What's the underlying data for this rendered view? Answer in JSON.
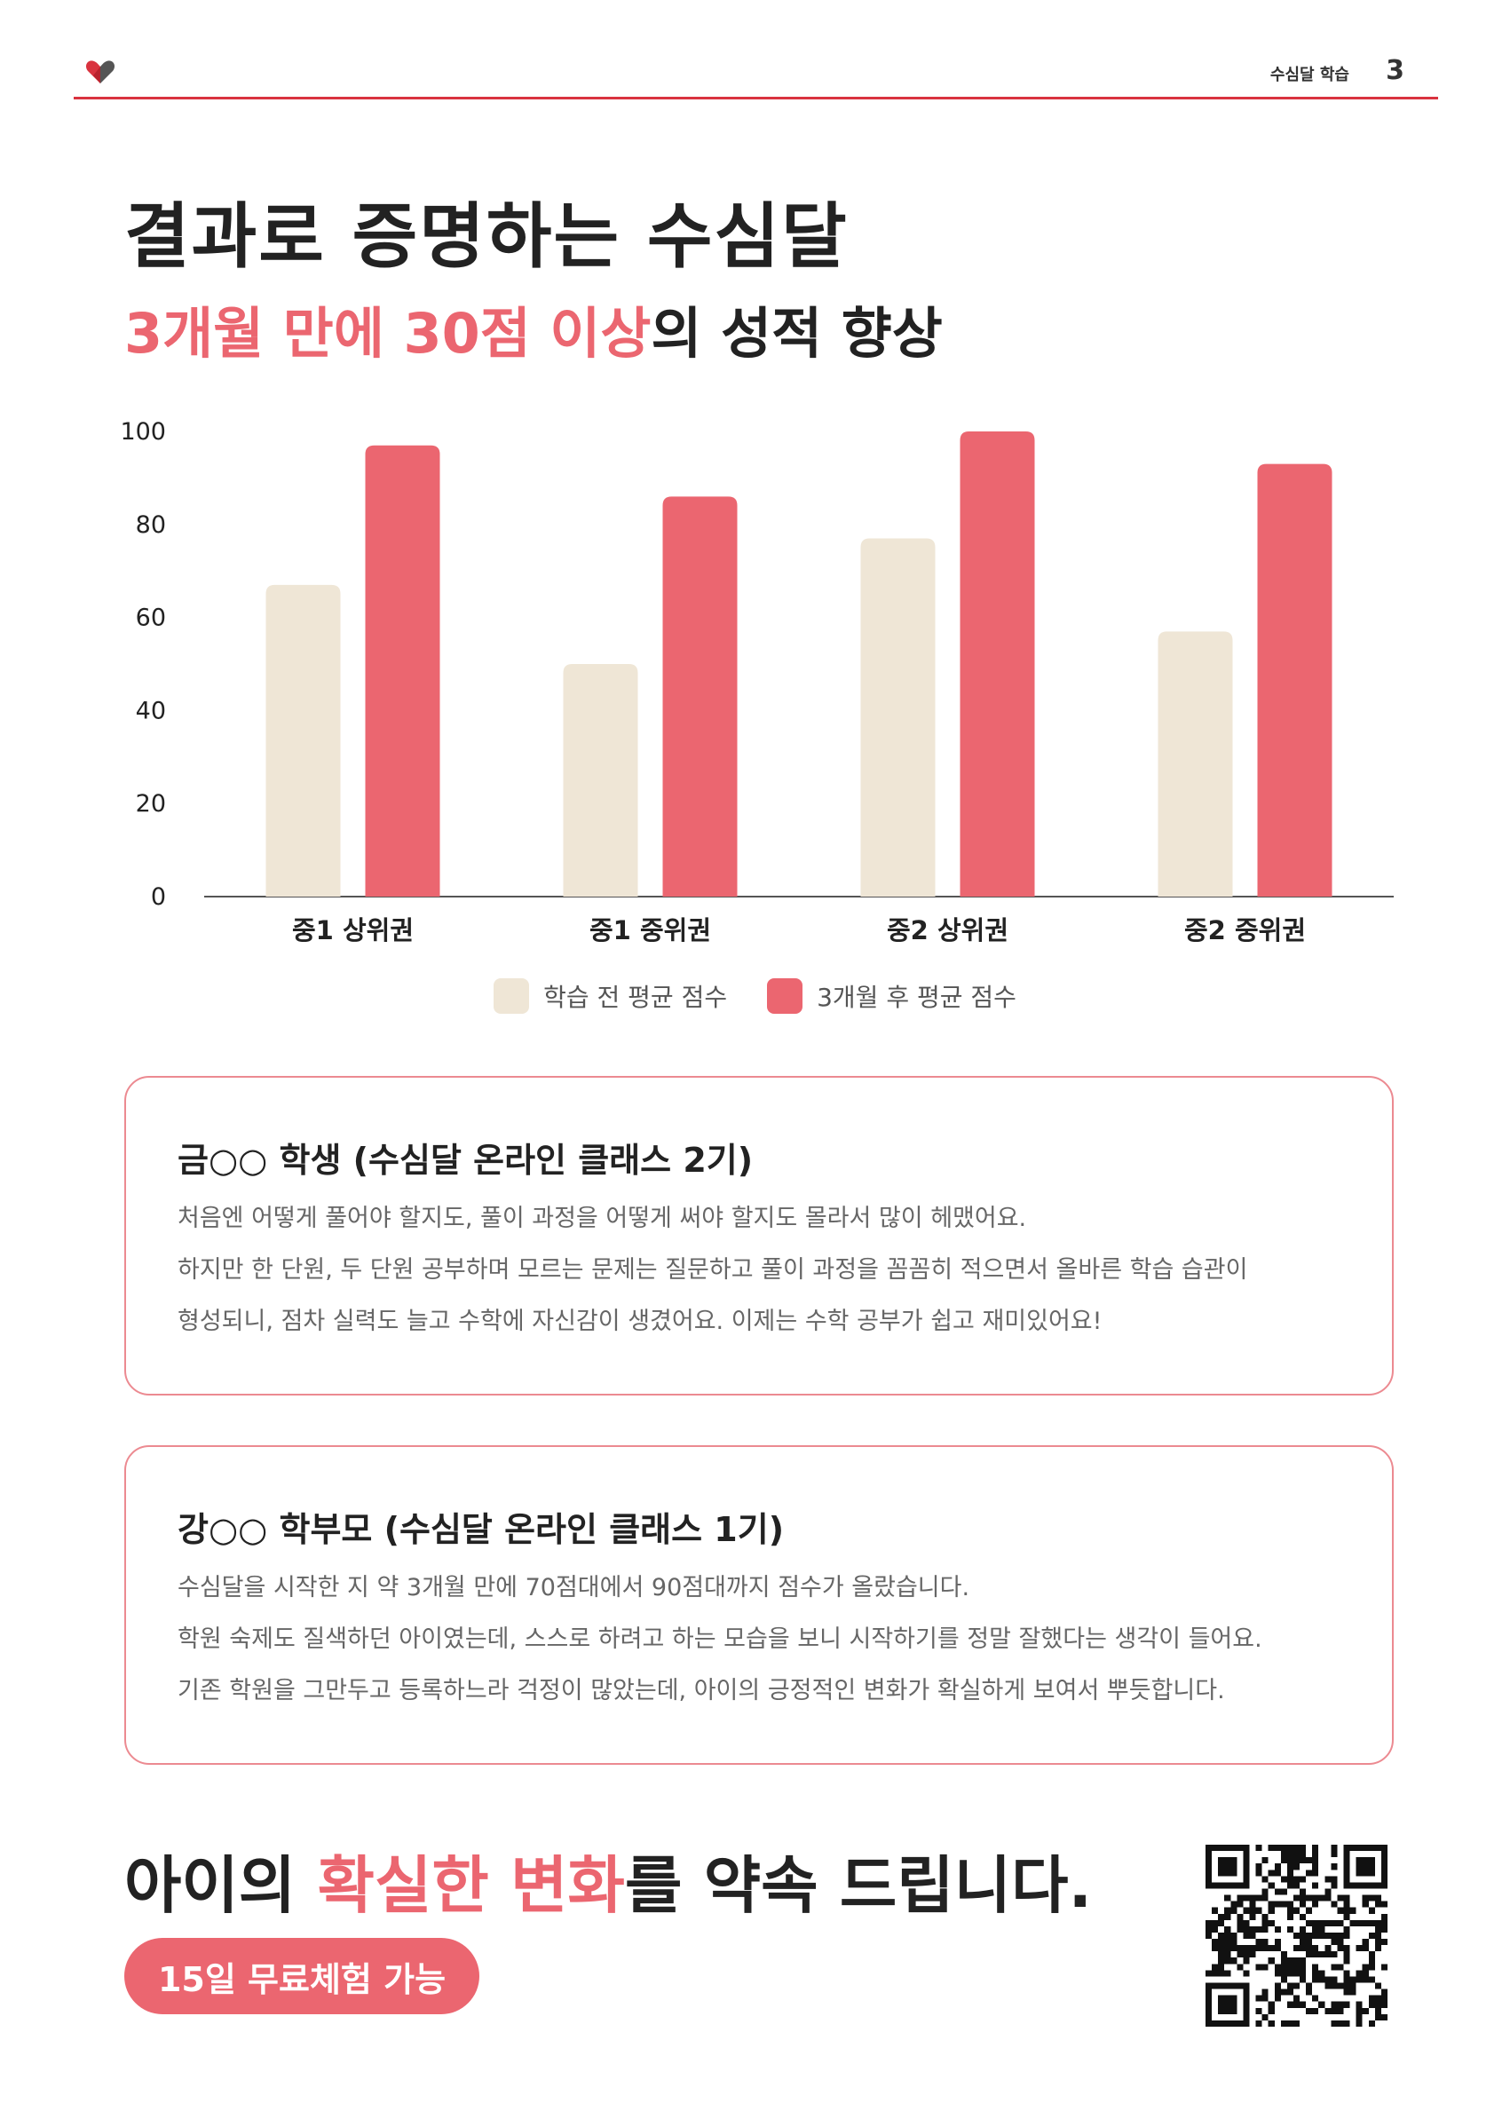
{
  "header": {
    "section": "수심달 학습",
    "page_number": "3"
  },
  "title": {
    "line1": "결과로 증명하는 수심달",
    "line2_accent": "3개월 만에 30점 이상",
    "line2_rest": "의 성적 향상"
  },
  "chart_data": {
    "type": "bar",
    "categories": [
      "중1 상위권",
      "중1 중위권",
      "중2 상위권",
      "중2 중위권"
    ],
    "series": [
      {
        "name": "학습 전 평균 점수",
        "color": "#efe6d6",
        "values": [
          67,
          50,
          77,
          57
        ]
      },
      {
        "name": "3개월 후 평균 점수",
        "color": "#eb6670",
        "values": [
          97,
          86,
          100,
          93
        ]
      }
    ],
    "yticks": [
      "0",
      "20",
      "40",
      "60",
      "80",
      "100"
    ],
    "ylim": [
      0,
      100
    ],
    "grid": false,
    "legend_position": "bottom-center"
  },
  "testimonials": [
    {
      "title": "금○○ 학생 (수심달 온라인 클래스 2기)",
      "lines": [
        "처음엔 어떻게 풀어야 할지도, 풀이 과정을 어떻게 써야 할지도 몰라서 많이 헤맸어요.",
        "하지만 한 단원, 두 단원 공부하며 모르는 문제는 질문하고 풀이 과정을 꼼꼼히 적으면서 올바른 학습 습관이",
        "형성되니, 점차 실력도 늘고 수학에 자신감이 생겼어요. 이제는 수학 공부가 쉽고 재미있어요!"
      ]
    },
    {
      "title": "강○○ 학부모 (수심달 온라인 클래스 1기)",
      "lines": [
        "수심달을 시작한 지 약 3개월 만에 70점대에서 90점대까지 점수가 올랐습니다.",
        "학원 숙제도 질색하던 아이였는데, 스스로 하려고 하는 모습을 보니 시작하기를 정말 잘했다는 생각이 들어요.",
        "기존 학원을 그만두고 등록하느라 걱정이 많았는데, 아이의 긍정적인 변화가 확실하게 보여서 뿌듯합니다."
      ]
    }
  ],
  "promise": {
    "pre": "아이의 ",
    "accent": "확실한 변화",
    "post": "를 약속 드립니다."
  },
  "cta": {
    "label": "15일 무료체험 가능"
  },
  "colors": {
    "accent": "#eb6670",
    "header_line": "#d9333f",
    "before_bar": "#efe6d6",
    "card_border": "#ec8a91"
  },
  "icons": {
    "logo": "heart-logo-icon",
    "qr": "qr-code"
  }
}
